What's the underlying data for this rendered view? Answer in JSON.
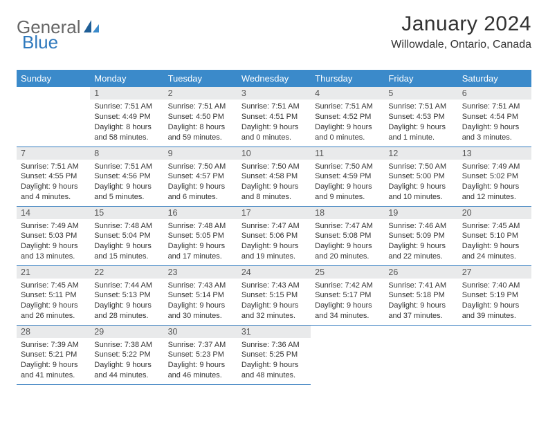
{
  "brand": {
    "part1": "General",
    "part2": "Blue"
  },
  "title": "January 2024",
  "location": "Willowdale, Ontario, Canada",
  "colors": {
    "header_bg": "#3b8aca",
    "rule": "#2f79bd",
    "daynum_bg": "#e9eaeb",
    "text": "#333333"
  },
  "day_headers": [
    "Sunday",
    "Monday",
    "Tuesday",
    "Wednesday",
    "Thursday",
    "Friday",
    "Saturday"
  ],
  "weeks": [
    [
      {
        "n": "",
        "sr": "",
        "ss": "",
        "d1": "",
        "d2": ""
      },
      {
        "n": "1",
        "sr": "Sunrise: 7:51 AM",
        "ss": "Sunset: 4:49 PM",
        "d1": "Daylight: 8 hours",
        "d2": "and 58 minutes."
      },
      {
        "n": "2",
        "sr": "Sunrise: 7:51 AM",
        "ss": "Sunset: 4:50 PM",
        "d1": "Daylight: 8 hours",
        "d2": "and 59 minutes."
      },
      {
        "n": "3",
        "sr": "Sunrise: 7:51 AM",
        "ss": "Sunset: 4:51 PM",
        "d1": "Daylight: 9 hours",
        "d2": "and 0 minutes."
      },
      {
        "n": "4",
        "sr": "Sunrise: 7:51 AM",
        "ss": "Sunset: 4:52 PM",
        "d1": "Daylight: 9 hours",
        "d2": "and 0 minutes."
      },
      {
        "n": "5",
        "sr": "Sunrise: 7:51 AM",
        "ss": "Sunset: 4:53 PM",
        "d1": "Daylight: 9 hours",
        "d2": "and 1 minute."
      },
      {
        "n": "6",
        "sr": "Sunrise: 7:51 AM",
        "ss": "Sunset: 4:54 PM",
        "d1": "Daylight: 9 hours",
        "d2": "and 3 minutes."
      }
    ],
    [
      {
        "n": "7",
        "sr": "Sunrise: 7:51 AM",
        "ss": "Sunset: 4:55 PM",
        "d1": "Daylight: 9 hours",
        "d2": "and 4 minutes."
      },
      {
        "n": "8",
        "sr": "Sunrise: 7:51 AM",
        "ss": "Sunset: 4:56 PM",
        "d1": "Daylight: 9 hours",
        "d2": "and 5 minutes."
      },
      {
        "n": "9",
        "sr": "Sunrise: 7:50 AM",
        "ss": "Sunset: 4:57 PM",
        "d1": "Daylight: 9 hours",
        "d2": "and 6 minutes."
      },
      {
        "n": "10",
        "sr": "Sunrise: 7:50 AM",
        "ss": "Sunset: 4:58 PM",
        "d1": "Daylight: 9 hours",
        "d2": "and 8 minutes."
      },
      {
        "n": "11",
        "sr": "Sunrise: 7:50 AM",
        "ss": "Sunset: 4:59 PM",
        "d1": "Daylight: 9 hours",
        "d2": "and 9 minutes."
      },
      {
        "n": "12",
        "sr": "Sunrise: 7:50 AM",
        "ss": "Sunset: 5:00 PM",
        "d1": "Daylight: 9 hours",
        "d2": "and 10 minutes."
      },
      {
        "n": "13",
        "sr": "Sunrise: 7:49 AM",
        "ss": "Sunset: 5:02 PM",
        "d1": "Daylight: 9 hours",
        "d2": "and 12 minutes."
      }
    ],
    [
      {
        "n": "14",
        "sr": "Sunrise: 7:49 AM",
        "ss": "Sunset: 5:03 PM",
        "d1": "Daylight: 9 hours",
        "d2": "and 13 minutes."
      },
      {
        "n": "15",
        "sr": "Sunrise: 7:48 AM",
        "ss": "Sunset: 5:04 PM",
        "d1": "Daylight: 9 hours",
        "d2": "and 15 minutes."
      },
      {
        "n": "16",
        "sr": "Sunrise: 7:48 AM",
        "ss": "Sunset: 5:05 PM",
        "d1": "Daylight: 9 hours",
        "d2": "and 17 minutes."
      },
      {
        "n": "17",
        "sr": "Sunrise: 7:47 AM",
        "ss": "Sunset: 5:06 PM",
        "d1": "Daylight: 9 hours",
        "d2": "and 19 minutes."
      },
      {
        "n": "18",
        "sr": "Sunrise: 7:47 AM",
        "ss": "Sunset: 5:08 PM",
        "d1": "Daylight: 9 hours",
        "d2": "and 20 minutes."
      },
      {
        "n": "19",
        "sr": "Sunrise: 7:46 AM",
        "ss": "Sunset: 5:09 PM",
        "d1": "Daylight: 9 hours",
        "d2": "and 22 minutes."
      },
      {
        "n": "20",
        "sr": "Sunrise: 7:45 AM",
        "ss": "Sunset: 5:10 PM",
        "d1": "Daylight: 9 hours",
        "d2": "and 24 minutes."
      }
    ],
    [
      {
        "n": "21",
        "sr": "Sunrise: 7:45 AM",
        "ss": "Sunset: 5:11 PM",
        "d1": "Daylight: 9 hours",
        "d2": "and 26 minutes."
      },
      {
        "n": "22",
        "sr": "Sunrise: 7:44 AM",
        "ss": "Sunset: 5:13 PM",
        "d1": "Daylight: 9 hours",
        "d2": "and 28 minutes."
      },
      {
        "n": "23",
        "sr": "Sunrise: 7:43 AM",
        "ss": "Sunset: 5:14 PM",
        "d1": "Daylight: 9 hours",
        "d2": "and 30 minutes."
      },
      {
        "n": "24",
        "sr": "Sunrise: 7:43 AM",
        "ss": "Sunset: 5:15 PM",
        "d1": "Daylight: 9 hours",
        "d2": "and 32 minutes."
      },
      {
        "n": "25",
        "sr": "Sunrise: 7:42 AM",
        "ss": "Sunset: 5:17 PM",
        "d1": "Daylight: 9 hours",
        "d2": "and 34 minutes."
      },
      {
        "n": "26",
        "sr": "Sunrise: 7:41 AM",
        "ss": "Sunset: 5:18 PM",
        "d1": "Daylight: 9 hours",
        "d2": "and 37 minutes."
      },
      {
        "n": "27",
        "sr": "Sunrise: 7:40 AM",
        "ss": "Sunset: 5:19 PM",
        "d1": "Daylight: 9 hours",
        "d2": "and 39 minutes."
      }
    ],
    [
      {
        "n": "28",
        "sr": "Sunrise: 7:39 AM",
        "ss": "Sunset: 5:21 PM",
        "d1": "Daylight: 9 hours",
        "d2": "and 41 minutes."
      },
      {
        "n": "29",
        "sr": "Sunrise: 7:38 AM",
        "ss": "Sunset: 5:22 PM",
        "d1": "Daylight: 9 hours",
        "d2": "and 44 minutes."
      },
      {
        "n": "30",
        "sr": "Sunrise: 7:37 AM",
        "ss": "Sunset: 5:23 PM",
        "d1": "Daylight: 9 hours",
        "d2": "and 46 minutes."
      },
      {
        "n": "31",
        "sr": "Sunrise: 7:36 AM",
        "ss": "Sunset: 5:25 PM",
        "d1": "Daylight: 9 hours",
        "d2": "and 48 minutes."
      },
      {
        "n": "",
        "sr": "",
        "ss": "",
        "d1": "",
        "d2": ""
      },
      {
        "n": "",
        "sr": "",
        "ss": "",
        "d1": "",
        "d2": ""
      },
      {
        "n": "",
        "sr": "",
        "ss": "",
        "d1": "",
        "d2": ""
      }
    ]
  ]
}
